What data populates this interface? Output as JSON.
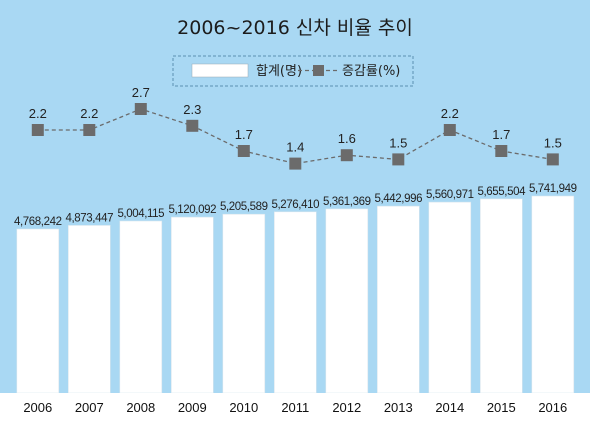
{
  "chart_data": {
    "type": "bar",
    "title": "2006~2016 신차 비율 추이",
    "categories": [
      "2006",
      "2007",
      "2008",
      "2009",
      "2010",
      "2011",
      "2012",
      "2013",
      "2014",
      "2015",
      "2016"
    ],
    "series": [
      {
        "name": "합계(명)",
        "type": "bar",
        "values": [
          4768242,
          4873447,
          5004115,
          5120092,
          5205589,
          5276410,
          5361369,
          5442996,
          5560971,
          5655504,
          5741949
        ],
        "labels": [
          "4,768,242",
          "4,873,447",
          "5,004,115",
          "5,120,092",
          "5,205,589",
          "5,276,410",
          "5,361,369",
          "5,442,996",
          "5,560,971",
          "5,655,504",
          "5,741,949"
        ],
        "color": "#ffffff"
      },
      {
        "name": "증감률(%)",
        "type": "line",
        "values": [
          2.2,
          2.2,
          2.7,
          2.3,
          1.7,
          1.4,
          1.6,
          1.5,
          2.2,
          1.7,
          1.5
        ],
        "labels": [
          "2.2",
          "2.2",
          "2.7",
          "2.3",
          "1.7",
          "1.4",
          "1.6",
          "1.5",
          "2.2",
          "1.7",
          "1.5"
        ],
        "color": "#6b6b6b",
        "line_style": "dashed",
        "marker": "square"
      }
    ],
    "legend_placement": "top-center",
    "grid": false
  },
  "colors": {
    "background": "#a9d8f3",
    "bar_fill": "#ffffff",
    "line_marker": "#6b6b6b",
    "axis_band": "#ffffff"
  }
}
